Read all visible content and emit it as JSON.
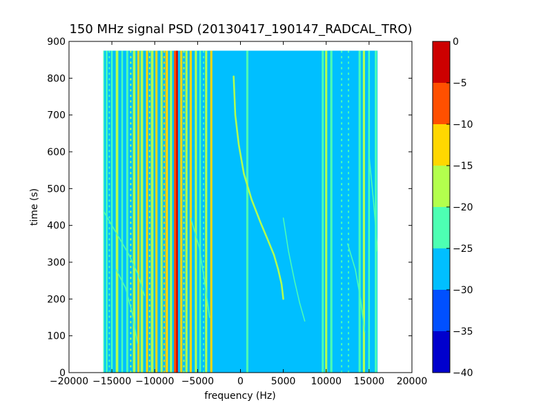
{
  "chart_data": {
    "type": "heatmap",
    "title": "150 MHz signal PSD (20130417_190147_RADCAL_TRO)",
    "xlabel": "frequency (Hz)",
    "ylabel": "time (s)",
    "xlim": [
      -20000,
      20000
    ],
    "ylim": [
      0,
      900
    ],
    "xticks": [
      -20000,
      -15000,
      -10000,
      -5000,
      0,
      5000,
      10000,
      15000,
      20000
    ],
    "yticks": [
      0,
      100,
      200,
      300,
      400,
      500,
      600,
      700,
      800,
      900
    ],
    "data_extent": {
      "freq": [
        -16000,
        16000
      ],
      "time": [
        0,
        875
      ]
    },
    "background_level": -27.5,
    "colormap": "jet",
    "colorbar": {
      "ticks": [
        0,
        -5,
        -10,
        -15,
        -20,
        -25,
        -30,
        -35,
        -40
      ],
      "levels": [
        {
          "range": [
            -40,
            -35
          ],
          "color": "#0000cd"
        },
        {
          "range": [
            -35,
            -30
          ],
          "color": "#0050ff"
        },
        {
          "range": [
            -30,
            -25
          ],
          "color": "#00bfff"
        },
        {
          "range": [
            -25,
            -20
          ],
          "color": "#4dffb3"
        },
        {
          "range": [
            -20,
            -15
          ],
          "color": "#b3ff4d"
        },
        {
          "range": [
            -15,
            -10
          ],
          "color": "#ffd700"
        },
        {
          "range": [
            -10,
            -5
          ],
          "color": "#ff5000"
        },
        {
          "range": [
            -5,
            0
          ],
          "color": "#cd0000"
        }
      ]
    },
    "vertical_lines": [
      {
        "freq": -16000,
        "width": 250,
        "level": -22
      },
      {
        "freq": -15600,
        "width": 200,
        "level": -22
      },
      {
        "freq": -15000,
        "width": 200,
        "level": -22
      },
      {
        "freq": -14400,
        "width": 300,
        "level": -17
      },
      {
        "freq": -13800,
        "width": 200,
        "level": -22
      },
      {
        "freq": -13200,
        "width": 250,
        "level": -22
      },
      {
        "freq": -12400,
        "width": 300,
        "level": -17
      },
      {
        "freq": -11900,
        "width": 250,
        "level": -12
      },
      {
        "freq": -11500,
        "width": 300,
        "level": -17
      },
      {
        "freq": -10900,
        "width": 250,
        "level": -12
      },
      {
        "freq": -10300,
        "width": 300,
        "level": -17
      },
      {
        "freq": -9800,
        "width": 250,
        "level": -12
      },
      {
        "freq": -9200,
        "width": 250,
        "level": -17
      },
      {
        "freq": -8600,
        "width": 300,
        "level": -12
      },
      {
        "freq": -8100,
        "width": 250,
        "level": -17
      },
      {
        "freq": -7600,
        "width": 300,
        "level": -7
      },
      {
        "freq": -7400,
        "width": 200,
        "level": -2
      },
      {
        "freq": -6900,
        "width": 250,
        "level": -12
      },
      {
        "freq": -6300,
        "width": 250,
        "level": -17
      },
      {
        "freq": -5800,
        "width": 250,
        "level": -12
      },
      {
        "freq": -5200,
        "width": 250,
        "level": -17
      },
      {
        "freq": -4700,
        "width": 200,
        "level": -22
      },
      {
        "freq": -4000,
        "width": 250,
        "level": -17
      },
      {
        "freq": -3400,
        "width": 250,
        "level": -12
      },
      {
        "freq": 800,
        "width": 250,
        "level": -22
      },
      {
        "freq": 9600,
        "width": 250,
        "level": -22
      },
      {
        "freq": 10000,
        "width": 250,
        "level": -17
      },
      {
        "freq": 10600,
        "width": 250,
        "level": -22
      },
      {
        "freq": 13900,
        "width": 250,
        "level": -22
      },
      {
        "freq": 14400,
        "width": 250,
        "level": -17
      },
      {
        "freq": 15000,
        "width": 200,
        "level": -22
      },
      {
        "freq": 15800,
        "width": 250,
        "level": -22
      }
    ],
    "dashed_lines": [
      {
        "freq": -15300,
        "level": -22
      },
      {
        "freq": -12800,
        "level": -17
      },
      {
        "freq": -10600,
        "level": -17
      },
      {
        "freq": -8900,
        "level": -12
      },
      {
        "freq": -6600,
        "level": -17
      },
      {
        "freq": -4300,
        "level": -22
      },
      {
        "freq": 11800,
        "level": -22
      },
      {
        "freq": 12600,
        "level": -22
      }
    ],
    "drift_curves": [
      {
        "level": -17,
        "width": 2.5,
        "points": [
          [
            -800,
            805
          ],
          [
            -600,
            700
          ],
          [
            -200,
            620
          ],
          [
            400,
            540
          ],
          [
            1300,
            470
          ],
          [
            2300,
            410
          ],
          [
            3200,
            360
          ],
          [
            3900,
            320
          ],
          [
            4400,
            280
          ],
          [
            4800,
            240
          ],
          [
            5000,
            200
          ]
        ]
      },
      {
        "level": -22,
        "width": 1.5,
        "points": [
          [
            5000,
            420
          ],
          [
            5600,
            330
          ],
          [
            6300,
            250
          ],
          [
            6900,
            190
          ],
          [
            7500,
            140
          ]
        ]
      },
      {
        "level": -22,
        "width": 1.5,
        "points": [
          [
            -16000,
            440
          ],
          [
            -14500,
            380
          ],
          [
            -13000,
            320
          ],
          [
            -12000,
            270
          ],
          [
            -11200,
            210
          ]
        ]
      },
      {
        "level": -22,
        "width": 1.5,
        "points": [
          [
            -14500,
            280
          ],
          [
            -13400,
            230
          ],
          [
            -12600,
            160
          ],
          [
            -12000,
            80
          ]
        ]
      },
      {
        "level": -22,
        "width": 1.5,
        "points": [
          [
            -5800,
            420
          ],
          [
            -4800,
            340
          ],
          [
            -4200,
            250
          ],
          [
            -3600,
            150
          ]
        ]
      },
      {
        "level": -22,
        "width": 1.5,
        "points": [
          [
            12500,
            350
          ],
          [
            13400,
            280
          ],
          [
            14000,
            200
          ],
          [
            14500,
            110
          ]
        ]
      },
      {
        "level": -22,
        "width": 1.5,
        "points": [
          [
            15000,
            590
          ],
          [
            15500,
            470
          ],
          [
            16000,
            330
          ]
        ]
      }
    ]
  }
}
